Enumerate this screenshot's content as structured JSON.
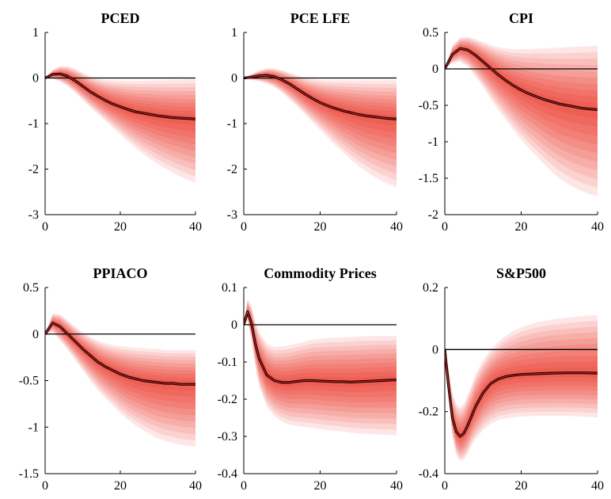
{
  "chart_data": [
    {
      "type": "area",
      "title": "PCED",
      "xlim": [
        0,
        40
      ],
      "ylim": [
        -3,
        1
      ],
      "xticks": [
        0,
        20,
        40
      ],
      "yticks": [
        1,
        0,
        -1,
        -2,
        -3
      ],
      "xticklabels": [
        "0",
        "20",
        "40"
      ],
      "yticklabels": [
        "1",
        "0",
        "-1",
        "-2",
        "-3"
      ],
      "zero_line": 0,
      "bands": "fan chart of shaded credible bands (light to dark red) around the median",
      "series": [
        {
          "x": [
            0,
            2,
            4,
            6,
            8,
            10,
            12,
            14,
            16,
            18,
            20,
            22,
            24,
            26,
            28,
            30,
            32,
            34,
            36,
            38,
            40
          ],
          "median": [
            0,
            0.08,
            0.09,
            0.04,
            -0.06,
            -0.18,
            -0.3,
            -0.4,
            -0.49,
            -0.57,
            -0.63,
            -0.69,
            -0.74,
            -0.77,
            -0.8,
            -0.83,
            -0.85,
            -0.87,
            -0.88,
            -0.89,
            -0.9
          ],
          "lower": [
            0,
            -0.02,
            -0.08,
            -0.18,
            -0.32,
            -0.48,
            -0.64,
            -0.79,
            -0.94,
            -1.09,
            -1.24,
            -1.39,
            -1.53,
            -1.66,
            -1.78,
            -1.89,
            -1.99,
            -2.08,
            -2.16,
            -2.24,
            -2.3
          ],
          "upper": [
            0,
            0.18,
            0.26,
            0.26,
            0.2,
            0.12,
            0.04,
            -0.01,
            -0.04,
            -0.05,
            -0.06,
            -0.06,
            -0.06,
            -0.06,
            -0.05,
            -0.05,
            -0.05,
            -0.04,
            -0.04,
            -0.03,
            -0.03
          ]
        }
      ]
    },
    {
      "type": "area",
      "title": "PCE LFE",
      "xlim": [
        0,
        40
      ],
      "ylim": [
        -3,
        1
      ],
      "xticks": [
        0,
        20,
        40
      ],
      "yticks": [
        1,
        0,
        -1,
        -2,
        -3
      ],
      "xticklabels": [
        "0",
        "20",
        "40"
      ],
      "yticklabels": [
        "1",
        "0",
        "-1",
        "-2",
        "-3"
      ],
      "zero_line": 0,
      "series": [
        {
          "x": [
            0,
            2,
            4,
            6,
            8,
            10,
            12,
            14,
            16,
            18,
            20,
            22,
            24,
            26,
            28,
            30,
            32,
            34,
            36,
            38,
            40
          ],
          "median": [
            0,
            0.02,
            0.05,
            0.06,
            0.03,
            -0.04,
            -0.13,
            -0.24,
            -0.35,
            -0.45,
            -0.54,
            -0.61,
            -0.67,
            -0.72,
            -0.76,
            -0.8,
            -0.83,
            -0.85,
            -0.87,
            -0.89,
            -0.9
          ],
          "lower": [
            0,
            -0.04,
            -0.07,
            -0.12,
            -0.2,
            -0.32,
            -0.47,
            -0.63,
            -0.8,
            -0.97,
            -1.14,
            -1.31,
            -1.48,
            -1.64,
            -1.79,
            -1.93,
            -2.05,
            -2.16,
            -2.25,
            -2.33,
            -2.4
          ],
          "upper": [
            0,
            0.09,
            0.16,
            0.21,
            0.21,
            0.17,
            0.12,
            0.06,
            0.01,
            -0.02,
            -0.04,
            -0.05,
            -0.05,
            -0.05,
            -0.05,
            -0.05,
            -0.05,
            -0.05,
            -0.05,
            -0.05,
            -0.05
          ]
        }
      ]
    },
    {
      "type": "area",
      "title": "CPI",
      "xlim": [
        0,
        40
      ],
      "ylim": [
        -2,
        0.5
      ],
      "xticks": [
        0,
        20,
        40
      ],
      "yticks": [
        0.5,
        0,
        -0.5,
        -1,
        -1.5,
        -2
      ],
      "xticklabels": [
        "0",
        "20",
        "40"
      ],
      "yticklabels": [
        "0.5",
        "0",
        "-0.5",
        "-1",
        "-1.5",
        "-2"
      ],
      "zero_line": 0,
      "series": [
        {
          "x": [
            0,
            2,
            4,
            6,
            8,
            10,
            12,
            14,
            16,
            18,
            20,
            22,
            24,
            26,
            28,
            30,
            32,
            34,
            36,
            38,
            40
          ],
          "median": [
            0,
            0.2,
            0.28,
            0.26,
            0.19,
            0.1,
            0.01,
            -0.08,
            -0.16,
            -0.23,
            -0.29,
            -0.34,
            -0.38,
            -0.42,
            -0.45,
            -0.48,
            -0.5,
            -0.52,
            -0.54,
            -0.55,
            -0.56
          ],
          "lower": [
            0,
            0.08,
            0.1,
            0.03,
            -0.1,
            -0.25,
            -0.41,
            -0.56,
            -0.7,
            -0.84,
            -0.97,
            -1.09,
            -1.2,
            -1.31,
            -1.41,
            -1.5,
            -1.57,
            -1.63,
            -1.68,
            -1.72,
            -1.75
          ],
          "upper": [
            0,
            0.32,
            0.43,
            0.44,
            0.41,
            0.37,
            0.33,
            0.3,
            0.28,
            0.27,
            0.27,
            0.27,
            0.28,
            0.28,
            0.29,
            0.29,
            0.3,
            0.3,
            0.31,
            0.31,
            0.32
          ]
        }
      ]
    },
    {
      "type": "area",
      "title": "PPIACO",
      "xlim": [
        0,
        40
      ],
      "ylim": [
        -1.5,
        0.5
      ],
      "xticks": [
        0,
        20,
        40
      ],
      "yticks": [
        0.5,
        0,
        -0.5,
        -1,
        -1.5
      ],
      "xticklabels": [
        "0",
        "20",
        "40"
      ],
      "yticklabels": [
        "0.5",
        "0",
        "-0.5",
        "-1",
        "-1.5"
      ],
      "zero_line": 0,
      "series": [
        {
          "x": [
            0,
            2,
            4,
            6,
            8,
            10,
            12,
            14,
            16,
            18,
            20,
            22,
            24,
            26,
            28,
            30,
            32,
            34,
            36,
            38,
            40
          ],
          "median": [
            0,
            0.12,
            0.08,
            0,
            -0.08,
            -0.16,
            -0.23,
            -0.3,
            -0.35,
            -0.39,
            -0.43,
            -0.46,
            -0.48,
            -0.5,
            -0.51,
            -0.52,
            -0.53,
            -0.53,
            -0.54,
            -0.54,
            -0.54
          ],
          "lower": [
            0,
            0.02,
            -0.07,
            -0.17,
            -0.28,
            -0.39,
            -0.5,
            -0.6,
            -0.69,
            -0.77,
            -0.85,
            -0.92,
            -0.98,
            -1.03,
            -1.08,
            -1.12,
            -1.15,
            -1.17,
            -1.19,
            -1.2,
            -1.21
          ],
          "upper": [
            0,
            0.22,
            0.21,
            0.15,
            0.08,
            0.02,
            -0.03,
            -0.07,
            -0.1,
            -0.12,
            -0.13,
            -0.14,
            -0.15,
            -0.15,
            -0.16,
            -0.16,
            -0.17,
            -0.17,
            -0.17,
            -0.17,
            -0.17
          ]
        }
      ]
    },
    {
      "type": "area",
      "title": "Commodity Prices",
      "xlim": [
        0,
        40
      ],
      "ylim": [
        -0.4,
        0.1
      ],
      "xticks": [
        0,
        20,
        40
      ],
      "yticks": [
        0.1,
        0,
        -0.1,
        -0.2,
        -0.3,
        -0.4
      ],
      "xticklabels": [
        "0",
        "20",
        "40"
      ],
      "yticklabels": [
        "0.1",
        "0",
        "-0.1",
        "-0.2",
        "-0.3",
        "-0.4"
      ],
      "zero_line": 0,
      "series": [
        {
          "x": [
            0,
            1,
            2,
            3,
            4,
            6,
            8,
            10,
            12,
            14,
            16,
            18,
            20,
            22,
            24,
            26,
            28,
            30,
            32,
            34,
            36,
            38,
            40
          ],
          "median": [
            0,
            0.035,
            0.005,
            -0.05,
            -0.09,
            -0.135,
            -0.15,
            -0.155,
            -0.155,
            -0.152,
            -0.15,
            -0.15,
            -0.151,
            -0.152,
            -0.153,
            -0.153,
            -0.154,
            -0.153,
            -0.152,
            -0.151,
            -0.15,
            -0.149,
            -0.148
          ],
          "lower": [
            0,
            0.01,
            -0.04,
            -0.11,
            -0.165,
            -0.22,
            -0.245,
            -0.26,
            -0.268,
            -0.272,
            -0.275,
            -0.277,
            -0.28,
            -0.283,
            -0.285,
            -0.287,
            -0.29,
            -0.292,
            -0.293,
            -0.294,
            -0.295,
            -0.296,
            -0.297
          ],
          "upper": [
            0,
            0.07,
            0.05,
            0.01,
            -0.02,
            -0.05,
            -0.06,
            -0.058,
            -0.055,
            -0.05,
            -0.045,
            -0.04,
            -0.038,
            -0.036,
            -0.035,
            -0.034,
            -0.033,
            -0.032,
            -0.031,
            -0.03,
            -0.03,
            -0.03,
            -0.03
          ]
        }
      ]
    },
    {
      "type": "area",
      "title": "S&P500",
      "xlim": [
        0,
        40
      ],
      "ylim": [
        -0.4,
        0.2
      ],
      "xticks": [
        0,
        20,
        40
      ],
      "yticks": [
        0.2,
        0,
        -0.2,
        -0.4
      ],
      "xticklabels": [
        "0",
        "20",
        "40"
      ],
      "yticklabels": [
        "0.2",
        "0",
        "-0.2",
        "-0.4"
      ],
      "zero_line": 0,
      "series": [
        {
          "x": [
            0,
            1,
            2,
            3,
            4,
            5,
            6,
            7,
            8,
            10,
            12,
            14,
            16,
            18,
            20,
            24,
            28,
            32,
            36,
            40
          ],
          "median": [
            0,
            -0.12,
            -0.22,
            -0.265,
            -0.28,
            -0.27,
            -0.245,
            -0.215,
            -0.185,
            -0.14,
            -0.11,
            -0.095,
            -0.087,
            -0.083,
            -0.08,
            -0.078,
            -0.076,
            -0.075,
            -0.075,
            -0.076
          ],
          "lower": [
            0,
            -0.16,
            -0.28,
            -0.34,
            -0.36,
            -0.355,
            -0.335,
            -0.31,
            -0.29,
            -0.26,
            -0.24,
            -0.228,
            -0.222,
            -0.218,
            -0.216,
            -0.214,
            -0.214,
            -0.214,
            -0.216,
            -0.219
          ],
          "upper": [
            0,
            -0.06,
            -0.14,
            -0.175,
            -0.185,
            -0.175,
            -0.145,
            -0.115,
            -0.08,
            -0.035,
            0,
            0.025,
            0.045,
            0.06,
            0.072,
            0.088,
            0.097,
            0.103,
            0.108,
            0.112
          ]
        }
      ]
    }
  ]
}
